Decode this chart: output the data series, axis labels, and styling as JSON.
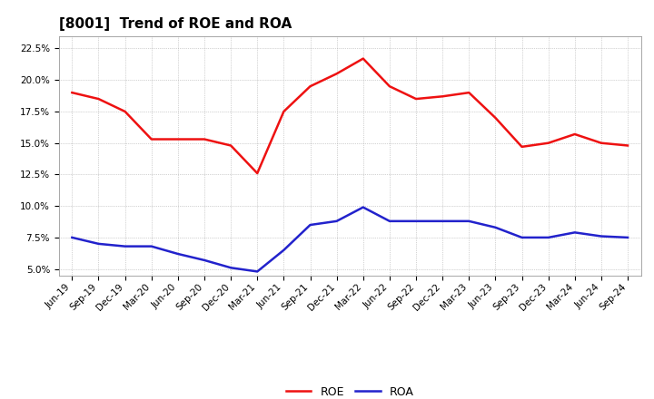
{
  "title": "[8001]  Trend of ROE and ROA",
  "labels": [
    "Jun-19",
    "Sep-19",
    "Dec-19",
    "Mar-20",
    "Jun-20",
    "Sep-20",
    "Dec-20",
    "Mar-21",
    "Jun-21",
    "Sep-21",
    "Dec-21",
    "Mar-22",
    "Jun-22",
    "Sep-22",
    "Dec-22",
    "Mar-23",
    "Jun-23",
    "Sep-23",
    "Dec-23",
    "Mar-24",
    "Jun-24",
    "Sep-24"
  ],
  "ROE": [
    19.0,
    18.5,
    17.5,
    15.3,
    15.3,
    15.3,
    14.8,
    12.6,
    17.5,
    19.5,
    20.5,
    21.7,
    19.5,
    18.5,
    18.7,
    19.0,
    17.0,
    14.7,
    15.0,
    15.7,
    15.0,
    14.8
  ],
  "ROA": [
    7.5,
    7.0,
    6.8,
    6.8,
    6.2,
    5.7,
    5.1,
    4.8,
    6.5,
    8.5,
    8.8,
    9.9,
    8.8,
    8.8,
    8.8,
    8.8,
    8.3,
    7.5,
    7.5,
    7.9,
    7.6,
    7.5
  ],
  "roe_color": "#EE1111",
  "roa_color": "#2222CC",
  "ylim_min": 4.5,
  "ylim_max": 23.5,
  "yticks": [
    5.0,
    7.5,
    10.0,
    12.5,
    15.0,
    17.5,
    20.0,
    22.5
  ],
  "background_color": "#FFFFFF",
  "plot_bg_color": "#FFFFFF",
  "grid_color": "#AAAAAA",
  "title_fontsize": 11,
  "legend_fontsize": 9,
  "tick_fontsize": 7.5,
  "line_width": 1.8
}
